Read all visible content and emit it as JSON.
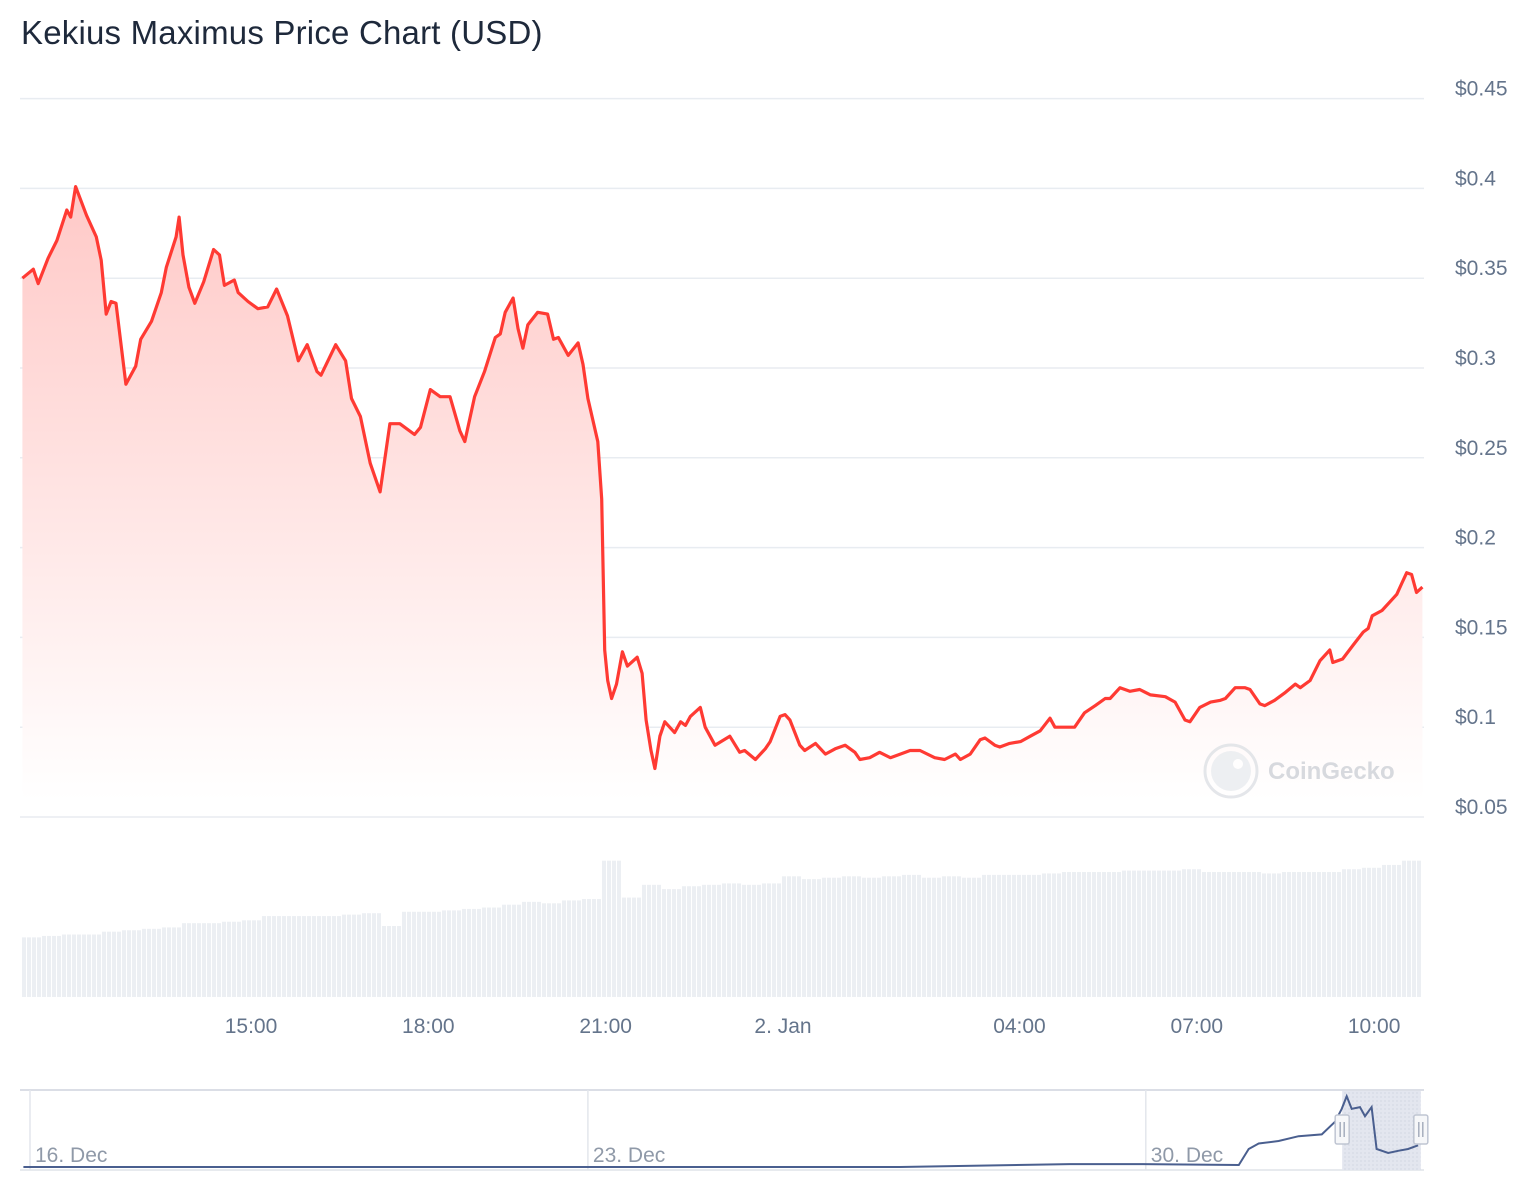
{
  "title": "Kekius Maximus Price Chart (USD)",
  "watermark": "CoinGecko",
  "colors": {
    "line": "#ff3a33",
    "area_top": "#ffc9c7",
    "grid": "#e8ecf1",
    "volume": "#eceff3",
    "navigator_line": "#4a5f8f",
    "axis_text": "#64748b"
  },
  "chart_data": {
    "type": "area",
    "title": "Kekius Maximus Price Chart (USD)",
    "yaxis": {
      "position": "right",
      "ylim": [
        0.05,
        0.45
      ],
      "ticks": [
        {
          "value": 0.45,
          "label": "$0.45"
        },
        {
          "value": 0.4,
          "label": "$0.4"
        },
        {
          "value": 0.35,
          "label": "$0.35"
        },
        {
          "value": 0.3,
          "label": "$0.3"
        },
        {
          "value": 0.25,
          "label": "$0.25"
        },
        {
          "value": 0.2,
          "label": "$0.2"
        },
        {
          "value": 0.15,
          "label": "$0.15"
        },
        {
          "value": 0.1,
          "label": "$0.1"
        },
        {
          "value": 0.05,
          "label": "$0.05"
        }
      ]
    },
    "xaxis": {
      "ticks": [
        {
          "time": "1 Jan 15:00",
          "label": "15:00"
        },
        {
          "time": "1 Jan 18:00",
          "label": "18:00"
        },
        {
          "time": "1 Jan 21:00",
          "label": "21:00"
        },
        {
          "time": "2 Jan 00:00",
          "label": "2. Jan"
        },
        {
          "time": "2 Jan 04:00",
          "label": "04:00"
        },
        {
          "time": "2 Jan 07:00",
          "label": "07:00"
        },
        {
          "time": "2 Jan 10:00",
          "label": "10:00"
        }
      ]
    },
    "grid": true,
    "series": [
      {
        "points": [
          [
            "1 Jan 11:08",
            0.35
          ],
          [
            "1 Jan 11:19",
            0.355
          ],
          [
            "1 Jan 11:24",
            0.347
          ],
          [
            "1 Jan 11:34",
            0.361
          ],
          [
            "1 Jan 11:43",
            0.371
          ],
          [
            "1 Jan 11:53",
            0.388
          ],
          [
            "1 Jan 11:57",
            0.384
          ],
          [
            "1 Jan 12:02",
            0.401
          ],
          [
            "1 Jan 12:13",
            0.385
          ],
          [
            "1 Jan 12:23",
            0.373
          ],
          [
            "1 Jan 12:28",
            0.36
          ],
          [
            "1 Jan 12:33",
            0.33
          ],
          [
            "1 Jan 12:38",
            0.337
          ],
          [
            "1 Jan 12:43",
            0.336
          ],
          [
            "1 Jan 12:53",
            0.291
          ],
          [
            "1 Jan 13:03",
            0.301
          ],
          [
            "1 Jan 13:08",
            0.316
          ],
          [
            "1 Jan 13:19",
            0.326
          ],
          [
            "1 Jan 13:29",
            0.342
          ],
          [
            "1 Jan 13:34",
            0.356
          ],
          [
            "1 Jan 13:44",
            0.373
          ],
          [
            "1 Jan 13:47",
            0.384
          ],
          [
            "1 Jan 13:51",
            0.363
          ],
          [
            "1 Jan 13:57",
            0.345
          ],
          [
            "1 Jan 14:03",
            0.336
          ],
          [
            "1 Jan 14:12",
            0.348
          ],
          [
            "1 Jan 14:22",
            0.366
          ],
          [
            "1 Jan 14:28",
            0.363
          ],
          [
            "1 Jan 14:33",
            0.346
          ],
          [
            "1 Jan 14:43",
            0.349
          ],
          [
            "1 Jan 14:47",
            0.342
          ],
          [
            "1 Jan 14:57",
            0.337
          ],
          [
            "1 Jan 15:07",
            0.333
          ],
          [
            "1 Jan 15:17",
            0.334
          ],
          [
            "1 Jan 15:26",
            0.344
          ],
          [
            "1 Jan 15:37",
            0.329
          ],
          [
            "1 Jan 15:48",
            0.304
          ],
          [
            "1 Jan 15:57",
            0.313
          ],
          [
            "1 Jan 16:07",
            0.298
          ],
          [
            "1 Jan 16:11",
            0.296
          ],
          [
            "1 Jan 16:26",
            0.313
          ],
          [
            "1 Jan 16:36",
            0.304
          ],
          [
            "1 Jan 16:42",
            0.283
          ],
          [
            "1 Jan 16:51",
            0.273
          ],
          [
            "1 Jan 17:01",
            0.247
          ],
          [
            "1 Jan 17:11",
            0.231
          ],
          [
            "1 Jan 17:21",
            0.269
          ],
          [
            "1 Jan 17:31",
            0.269
          ],
          [
            "1 Jan 17:46",
            0.263
          ],
          [
            "1 Jan 17:52",
            0.267
          ],
          [
            "1 Jan 18:02",
            0.288
          ],
          [
            "1 Jan 18:12",
            0.284
          ],
          [
            "1 Jan 18:22",
            0.284
          ],
          [
            "1 Jan 18:32",
            0.265
          ],
          [
            "1 Jan 18:37",
            0.259
          ],
          [
            "1 Jan 18:47",
            0.284
          ],
          [
            "1 Jan 18:57",
            0.298
          ],
          [
            "1 Jan 19:08",
            0.317
          ],
          [
            "1 Jan 19:13",
            0.319
          ],
          [
            "1 Jan 19:18",
            0.331
          ],
          [
            "1 Jan 19:26",
            0.339
          ],
          [
            "1 Jan 19:31",
            0.322
          ],
          [
            "1 Jan 19:36",
            0.311
          ],
          [
            "1 Jan 19:41",
            0.324
          ],
          [
            "1 Jan 19:51",
            0.331
          ],
          [
            "1 Jan 20:01",
            0.33
          ],
          [
            "1 Jan 20:07",
            0.316
          ],
          [
            "1 Jan 20:12",
            0.317
          ],
          [
            "1 Jan 20:22",
            0.307
          ],
          [
            "1 Jan 20:32",
            0.314
          ],
          [
            "1 Jan 20:37",
            0.302
          ],
          [
            "1 Jan 20:42",
            0.283
          ],
          [
            "1 Jan 20:52",
            0.259
          ],
          [
            "1 Jan 20:56",
            0.227
          ],
          [
            "1 Jan 20:59",
            0.143
          ],
          [
            "1 Jan 21:02",
            0.126
          ],
          [
            "1 Jan 21:06",
            0.116
          ],
          [
            "1 Jan 21:11",
            0.124
          ],
          [
            "1 Jan 21:17",
            0.142
          ],
          [
            "1 Jan 21:22",
            0.134
          ],
          [
            "1 Jan 21:32",
            0.139
          ],
          [
            "1 Jan 21:37",
            0.13
          ],
          [
            "1 Jan 21:41",
            0.104
          ],
          [
            "1 Jan 21:46",
            0.087
          ],
          [
            "1 Jan 21:50",
            0.077
          ],
          [
            "1 Jan 21:55",
            0.095
          ],
          [
            "1 Jan 22:00",
            0.103
          ],
          [
            "1 Jan 22:10",
            0.097
          ],
          [
            "1 Jan 22:16",
            0.103
          ],
          [
            "1 Jan 22:21",
            0.101
          ],
          [
            "1 Jan 22:26",
            0.106
          ],
          [
            "1 Jan 22:36",
            0.111
          ],
          [
            "1 Jan 22:41",
            0.1
          ],
          [
            "1 Jan 22:51",
            0.09
          ],
          [
            "1 Jan 23:06",
            0.095
          ],
          [
            "1 Jan 23:16",
            0.086
          ],
          [
            "1 Jan 23:21",
            0.087
          ],
          [
            "1 Jan 23:32",
            0.082
          ],
          [
            "1 Jan 23:42",
            0.088
          ],
          [
            "1 Jan 23:47",
            0.092
          ],
          [
            "1 Jan 23:57",
            0.106
          ],
          [
            "2 Jan 00:02",
            0.107
          ],
          [
            "2 Jan 00:07",
            0.104
          ],
          [
            "2 Jan 00:17",
            0.09
          ],
          [
            "2 Jan 00:22",
            0.087
          ],
          [
            "2 Jan 00:33",
            0.091
          ],
          [
            "2 Jan 00:43",
            0.085
          ],
          [
            "2 Jan 00:53",
            0.088
          ],
          [
            "2 Jan 01:03",
            0.09
          ],
          [
            "2 Jan 01:13",
            0.086
          ],
          [
            "2 Jan 01:18",
            0.082
          ],
          [
            "2 Jan 01:28",
            0.083
          ],
          [
            "2 Jan 01:38",
            0.086
          ],
          [
            "2 Jan 01:49",
            0.083
          ],
          [
            "2 Jan 01:59",
            0.085
          ],
          [
            "2 Jan 02:09",
            0.087
          ],
          [
            "2 Jan 02:19",
            0.087
          ],
          [
            "2 Jan 02:34",
            0.083
          ],
          [
            "2 Jan 02:44",
            0.082
          ],
          [
            "2 Jan 02:55",
            0.085
          ],
          [
            "2 Jan 03:00",
            0.082
          ],
          [
            "2 Jan 03:10",
            0.085
          ],
          [
            "2 Jan 03:20",
            0.093
          ],
          [
            "2 Jan 03:25",
            0.094
          ],
          [
            "2 Jan 03:35",
            0.09
          ],
          [
            "2 Jan 03:40",
            0.089
          ],
          [
            "2 Jan 03:50",
            0.091
          ],
          [
            "2 Jan 04:01",
            0.092
          ],
          [
            "2 Jan 04:11",
            0.095
          ],
          [
            "2 Jan 04:21",
            0.098
          ],
          [
            "2 Jan 04:31",
            0.105
          ],
          [
            "2 Jan 04:36",
            0.1
          ],
          [
            "2 Jan 04:46",
            0.1
          ],
          [
            "2 Jan 04:56",
            0.1
          ],
          [
            "2 Jan 05:06",
            0.108
          ],
          [
            "2 Jan 05:17",
            0.112
          ],
          [
            "2 Jan 05:27",
            0.116
          ],
          [
            "2 Jan 05:32",
            0.116
          ],
          [
            "2 Jan 05:42",
            0.122
          ],
          [
            "2 Jan 05:52",
            0.12
          ],
          [
            "2 Jan 06:02",
            0.121
          ],
          [
            "2 Jan 06:13",
            0.118
          ],
          [
            "2 Jan 06:28",
            0.117
          ],
          [
            "2 Jan 06:38",
            0.114
          ],
          [
            "2 Jan 06:48",
            0.104
          ],
          [
            "2 Jan 06:53",
            0.103
          ],
          [
            "2 Jan 07:03",
            0.111
          ],
          [
            "2 Jan 07:14",
            0.114
          ],
          [
            "2 Jan 07:24",
            0.115
          ],
          [
            "2 Jan 07:29",
            0.116
          ],
          [
            "2 Jan 07:39",
            0.122
          ],
          [
            "2 Jan 07:49",
            0.122
          ],
          [
            "2 Jan 07:54",
            0.121
          ],
          [
            "2 Jan 08:04",
            0.113
          ],
          [
            "2 Jan 08:09",
            0.112
          ],
          [
            "2 Jan 08:19",
            0.115
          ],
          [
            "2 Jan 08:29",
            0.119
          ],
          [
            "2 Jan 08:40",
            0.124
          ],
          [
            "2 Jan 08:45",
            0.122
          ],
          [
            "2 Jan 08:55",
            0.126
          ],
          [
            "2 Jan 09:05",
            0.137
          ],
          [
            "2 Jan 09:15",
            0.143
          ],
          [
            "2 Jan 09:18",
            0.136
          ],
          [
            "2 Jan 09:28",
            0.138
          ],
          [
            "2 Jan 09:39",
            0.146
          ],
          [
            "2 Jan 09:49",
            0.153
          ],
          [
            "2 Jan 09:54",
            0.155
          ],
          [
            "2 Jan 09:58",
            0.162
          ],
          [
            "2 Jan 10:08",
            0.165
          ],
          [
            "2 Jan 10:18",
            0.171
          ],
          [
            "2 Jan 10:23",
            0.174
          ],
          [
            "2 Jan 10:28",
            0.18
          ],
          [
            "2 Jan 10:33",
            0.186
          ],
          [
            "2 Jan 10:38",
            0.185
          ],
          [
            "2 Jan 10:43",
            0.175
          ],
          [
            "2 Jan 10:49",
            0.178
          ]
        ]
      }
    ],
    "volume_relative": [
      0.42,
      0.43,
      0.44,
      0.44,
      0.46,
      0.47,
      0.48,
      0.49,
      0.52,
      0.52,
      0.53,
      0.54,
      0.57,
      0.57,
      0.57,
      0.57,
      0.58,
      0.59,
      0.5,
      0.6,
      0.6,
      0.61,
      0.62,
      0.63,
      0.65,
      0.67,
      0.66,
      0.68,
      0.69,
      0.96,
      0.7,
      0.79,
      0.76,
      0.78,
      0.79,
      0.8,
      0.79,
      0.8,
      0.85,
      0.83,
      0.84,
      0.85,
      0.84,
      0.85,
      0.86,
      0.84,
      0.85,
      0.84,
      0.86,
      0.86,
      0.86,
      0.87,
      0.88,
      0.88,
      0.88,
      0.89,
      0.89,
      0.89,
      0.9,
      0.88,
      0.88,
      0.88,
      0.87,
      0.88,
      0.88,
      0.88,
      0.9,
      0.91,
      0.93,
      0.96
    ],
    "navigator": {
      "ticks": [
        {
          "date": "16 Dec 00:00",
          "label": "16. Dec"
        },
        {
          "date": "23 Dec 00:00",
          "label": "23. Dec"
        },
        {
          "date": "30 Dec 00:00",
          "label": "30. Dec"
        }
      ],
      "selected_range": [
        "1 Jan 11:08",
        "2 Jan 10:49"
      ],
      "points": [
        [
          "15 Dec 22:00",
          0.011
        ],
        [
          "21 Dec 22:00",
          0.011
        ],
        [
          "26 Dec 22:00",
          0.011
        ],
        [
          "29 Dec 01:00",
          0.027
        ],
        [
          "29 Dec 22:00",
          0.027
        ],
        [
          "31 Dec 04:00",
          0.022
        ],
        [
          "31 Dec 07:00",
          0.11
        ],
        [
          "31 Dec 10:00",
          0.14
        ],
        [
          "31 Dec 16:00",
          0.154
        ],
        [
          "31 Dec 22:00",
          0.18
        ],
        [
          "1 Jan 05:00",
          0.19
        ],
        [
          "1 Jan 09:00",
          0.26
        ],
        [
          "1 Jan 11:00",
          0.33
        ],
        [
          "1 Jan 12:30",
          0.4
        ],
        [
          "1 Jan 14:00",
          0.33
        ],
        [
          "1 Jan 16:30",
          0.34
        ],
        [
          "1 Jan 18:00",
          0.29
        ],
        [
          "1 Jan 20:00",
          0.34
        ],
        [
          "1 Jan 21:30",
          0.11
        ],
        [
          "2 Jan 01:00",
          0.088
        ],
        [
          "2 Jan 04:00",
          0.1
        ],
        [
          "2 Jan 07:00",
          0.11
        ],
        [
          "2 Jan 10:00",
          0.13
        ]
      ]
    }
  }
}
